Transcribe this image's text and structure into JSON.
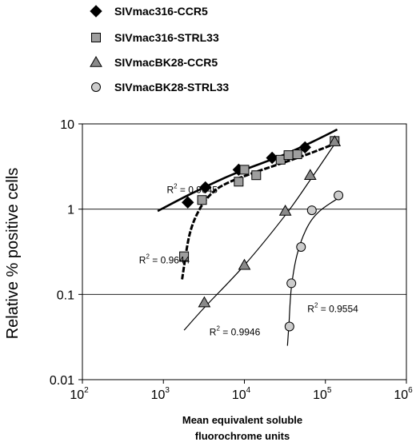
{
  "chart_data": {
    "type": "scatter",
    "title": "",
    "xlabel": "Mean equivalent soluble fluorochrome units",
    "ylabel": "Relative % positive cells",
    "x_scale": "log",
    "y_scale": "log",
    "xlim": [
      100,
      1000000
    ],
    "ylim": [
      0.01,
      10
    ],
    "grid": "horizontal at 0.1, 1, 10",
    "legend_position": "top-left",
    "x_ticks": [
      {
        "base": "10",
        "exp": "2",
        "value": 100
      },
      {
        "base": "10",
        "exp": "3",
        "value": 1000
      },
      {
        "base": "10",
        "exp": "4",
        "value": 10000
      },
      {
        "base": "10",
        "exp": "5",
        "value": 100000
      },
      {
        "base": "10",
        "exp": "6",
        "value": 1000000
      }
    ],
    "y_ticks": [
      {
        "label": "10",
        "value": 10
      },
      {
        "label": "1",
        "value": 1
      },
      {
        "label": "0.1",
        "value": 0.1
      },
      {
        "label": "0.01",
        "value": 0.01
      }
    ],
    "series": [
      {
        "name": "SIVmac316-CCR5",
        "marker": "diamond",
        "fill": "#000000",
        "points": [
          [
            2000,
            1.2
          ],
          [
            3300,
            1.8
          ],
          [
            8500,
            2.9
          ],
          [
            22000,
            4.0
          ],
          [
            56000,
            5.3
          ]
        ],
        "fit": [
          [
            850,
            0.95
          ],
          [
            2000,
            1.45
          ],
          [
            5000,
            2.2
          ],
          [
            10000,
            2.9
          ],
          [
            30000,
            4.3
          ],
          [
            70000,
            6.2
          ],
          [
            140000,
            8.6
          ]
        ],
        "fit_style": "solid-thick",
        "r2": {
          "label": "R",
          "exp": "2",
          "value": "= 0.9645",
          "at": [
            1100,
            1.55
          ]
        }
      },
      {
        "name": "SIVmac316-STRL33",
        "marker": "square",
        "fill": "#9e9e9e",
        "points": [
          [
            1800,
            0.28
          ],
          [
            3000,
            1.28
          ],
          [
            8500,
            2.1
          ],
          [
            10000,
            2.9
          ],
          [
            14000,
            2.5
          ],
          [
            28000,
            3.8
          ],
          [
            35000,
            4.3
          ],
          [
            45000,
            4.4
          ],
          [
            130000,
            6.3
          ]
        ],
        "fit": [
          [
            1700,
            0.15
          ],
          [
            2100,
            0.5
          ],
          [
            2800,
            1.0
          ],
          [
            4000,
            1.55
          ],
          [
            6000,
            2.0
          ],
          [
            12000,
            2.6
          ],
          [
            25000,
            3.3
          ],
          [
            60000,
            4.4
          ],
          [
            140000,
            6.0
          ]
        ],
        "fit_style": "dashed-thick",
        "r2": {
          "label": "R",
          "exp": "2",
          "value": "= 0.9644",
          "at": [
            500,
            0.23
          ]
        }
      },
      {
        "name": "SIVmacBK28-CCR5",
        "marker": "triangle",
        "fill": "#8a8a8a",
        "points": [
          [
            3200,
            0.08
          ],
          [
            10000,
            0.22
          ],
          [
            32000,
            0.95
          ],
          [
            65000,
            2.5
          ],
          [
            130000,
            6.2
          ]
        ],
        "fit": [
          [
            1800,
            0.038
          ],
          [
            3200,
            0.07
          ],
          [
            10000,
            0.22
          ],
          [
            32000,
            0.85
          ],
          [
            65000,
            2.2
          ],
          [
            130000,
            5.8
          ]
        ],
        "fit_style": "solid-thin",
        "r2": {
          "label": "R",
          "exp": "2",
          "value": "= 0.9946",
          "at": [
            3700,
            0.033
          ]
        }
      },
      {
        "name": "SIVmacBK28-STRL33",
        "marker": "circle",
        "fill": "#cccccc",
        "points": [
          [
            36000,
            0.042
          ],
          [
            38000,
            0.135
          ],
          [
            50000,
            0.36
          ],
          [
            68000,
            0.97
          ],
          [
            145000,
            1.45
          ]
        ],
        "fit": [
          [
            34000,
            0.025
          ],
          [
            35500,
            0.045
          ],
          [
            38000,
            0.12
          ],
          [
            45000,
            0.3
          ],
          [
            60000,
            0.62
          ],
          [
            85000,
            0.95
          ],
          [
            145000,
            1.35
          ]
        ],
        "fit_style": "solid-thin",
        "r2": {
          "label": "R",
          "exp": "2",
          "value": "= 0.9554",
          "at": [
            60000,
            0.062
          ]
        }
      }
    ]
  }
}
